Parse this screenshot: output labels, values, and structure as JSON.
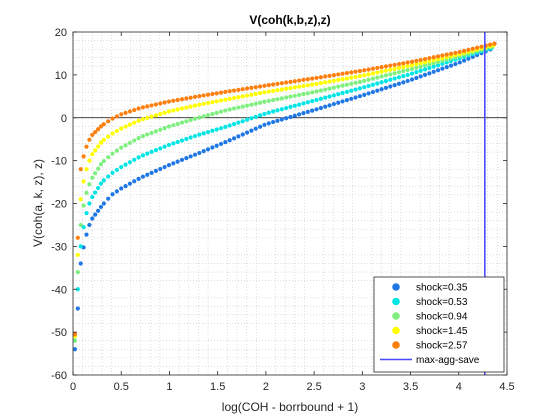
{
  "chart_data": {
    "type": "scatter",
    "title": "V(coh(k,b,z),z)",
    "xlabel": "log(COH - borrbound + 1)",
    "ylabel": "V(coh(a, k, z), z)",
    "xlim": [
      0,
      4.5
    ],
    "ylim": [
      -60,
      20
    ],
    "xticks": [
      "0",
      "0.5",
      "1",
      "1.5",
      "2",
      "2.5",
      "3",
      "3.5",
      "4",
      "4.5"
    ],
    "yticks": [
      "-60",
      "-50",
      "-40",
      "-30",
      "-20",
      "-10",
      "0",
      "10",
      "20"
    ],
    "grid": "minor dotted",
    "legend_position": "bottom-right",
    "zero_line": 0,
    "series": [
      {
        "name": "shock=0.35",
        "color": "#1f77e6",
        "x": [
          0.02,
          0.05,
          0.08,
          0.12,
          0.16,
          0.2,
          0.3,
          0.4,
          0.5,
          0.7,
          1.0,
          1.3,
          1.6,
          2.0,
          2.5,
          3.0,
          3.5,
          4.0,
          4.33
        ],
        "y": [
          -54,
          -44.5,
          -34,
          -29,
          -25.5,
          -23.5,
          -20.5,
          -18,
          -16.5,
          -14,
          -11,
          -8.3,
          -5.5,
          -1.5,
          1.8,
          5.2,
          8.8,
          12.8,
          16
        ]
      },
      {
        "name": "shock=0.53",
        "color": "#00e5e5",
        "x": [
          0.02,
          0.05,
          0.08,
          0.12,
          0.16,
          0.2,
          0.3,
          0.4,
          0.5,
          0.7,
          1.0,
          1.3,
          1.6,
          2.0,
          2.5,
          3.0,
          3.5,
          4.0,
          4.34
        ],
        "y": [
          -52,
          -40,
          -30,
          -24,
          -20.5,
          -18.5,
          -15,
          -13,
          -11.5,
          -9,
          -6.3,
          -4,
          -2,
          1,
          4,
          7,
          10.2,
          13.8,
          16.3
        ]
      },
      {
        "name": "shock=0.94",
        "color": "#7fef7f",
        "x": [
          0.02,
          0.05,
          0.08,
          0.12,
          0.16,
          0.2,
          0.3,
          0.4,
          0.5,
          0.7,
          1.0,
          1.3,
          1.6,
          2.0,
          2.5,
          3.0,
          3.5,
          4.0,
          4.35
        ],
        "y": [
          -52,
          -36,
          -25,
          -19,
          -16,
          -14,
          -10.5,
          -8.5,
          -7,
          -4.5,
          -2,
          0,
          1.8,
          3.8,
          6,
          8.5,
          11.3,
          14.3,
          16.6
        ]
      },
      {
        "name": "shock=1.45",
        "color": "#ffff00",
        "x": [
          0.02,
          0.05,
          0.08,
          0.12,
          0.16,
          0.2,
          0.3,
          0.4,
          0.5,
          0.7,
          1.0,
          1.3,
          1.6,
          2.0,
          2.5,
          3.0,
          3.5,
          4.0,
          4.36
        ],
        "y": [
          -51,
          -32,
          -19,
          -13.5,
          -10.5,
          -8.5,
          -5.5,
          -3.8,
          -2.5,
          -0.5,
          1.5,
          3,
          4.3,
          6,
          7.8,
          9.8,
          12.2,
          14.8,
          16.9
        ]
      },
      {
        "name": "shock=2.57",
        "color": "#ff7f0e",
        "x": [
          0.02,
          0.05,
          0.08,
          0.12,
          0.16,
          0.2,
          0.3,
          0.4,
          0.5,
          0.7,
          1.0,
          1.3,
          1.6,
          2.0,
          2.5,
          3.0,
          3.5,
          4.0,
          4.37
        ],
        "y": [
          -50.5,
          -28,
          -12,
          -8,
          -5.5,
          -4,
          -1.8,
          -0.3,
          0.8,
          2.3,
          3.8,
          5,
          6.1,
          7.5,
          9.2,
          11,
          13,
          15.3,
          17.3
        ]
      }
    ],
    "vertical_line": {
      "name": "max-agg-save",
      "x": 4.27,
      "color": "#4a4aff"
    }
  }
}
